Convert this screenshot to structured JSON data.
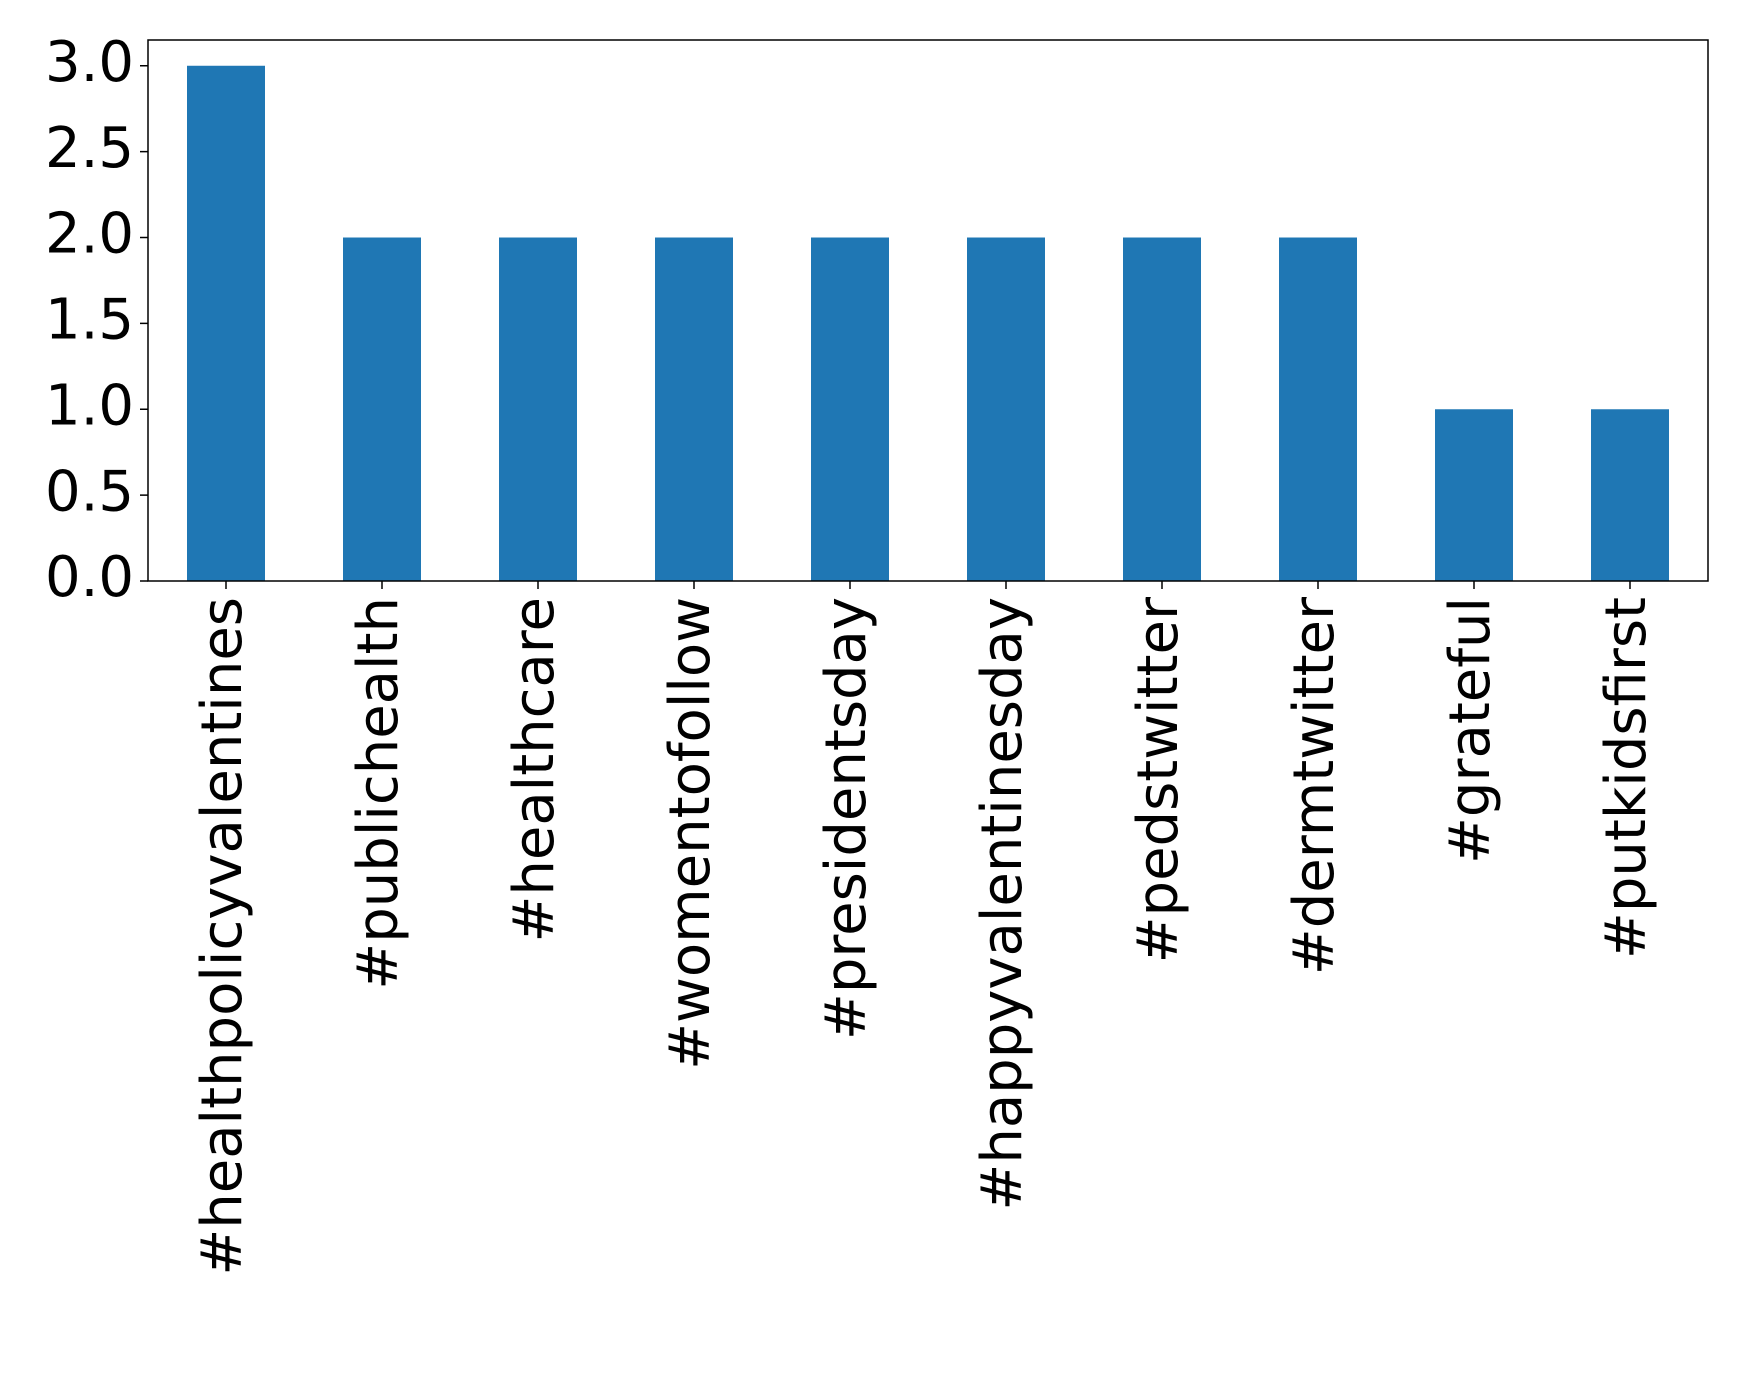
{
  "chart_data": {
    "type": "bar",
    "categories": [
      "#healthpolicyvalentines",
      "#publichealth",
      "#healthcare",
      "#womentofollow",
      "#presidentsday",
      "#happyvalentinesday",
      "#pedstwitter",
      "#dermtwitter",
      "#grateful",
      "#putkidsfirst"
    ],
    "values": [
      3,
      2,
      2,
      2,
      2,
      2,
      2,
      2,
      1,
      1
    ],
    "color": "#1f77b4",
    "ylim": [
      0,
      3.15
    ],
    "yticks": [
      {
        "value": 0,
        "label": "0.0"
      },
      0.5,
      {
        "value": 1,
        "label": "1.0"
      },
      1.5,
      {
        "value": 2,
        "label": "2.0"
      },
      2.5,
      {
        "value": 3,
        "label": "3.0"
      }
    ]
  }
}
